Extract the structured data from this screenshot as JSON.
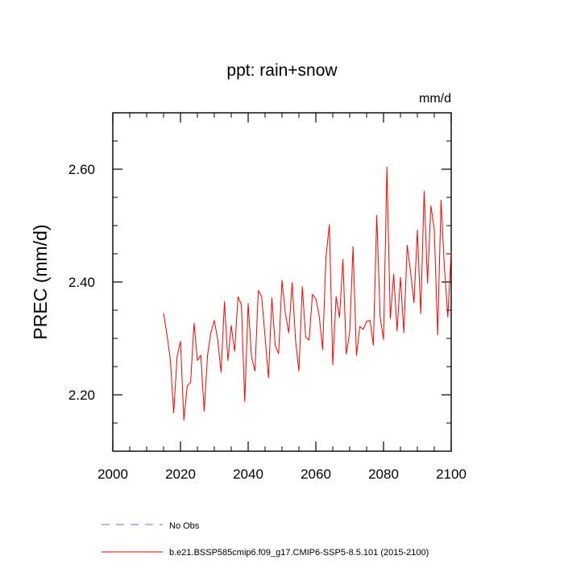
{
  "chart_data": {
    "type": "line",
    "title": "ppt: rain+snow",
    "units_label": "mm/d",
    "ylabel": "PREC  (mm/d)",
    "xlabel": "",
    "xlim": [
      2000,
      2100
    ],
    "ylim": [
      2.1,
      2.7
    ],
    "x_major_ticks": [
      2000,
      2020,
      2040,
      2060,
      2080,
      2100
    ],
    "x_tick_labels": [
      "2000",
      "2020",
      "2040",
      "2060",
      "2080",
      "2100"
    ],
    "x_minor_step": 5,
    "y_major_ticks": [
      2.2,
      2.4,
      2.6
    ],
    "y_tick_labels": [
      "2.20",
      "2.40",
      "2.60"
    ],
    "y_minor_step": 0.05,
    "series": [
      {
        "name": "b.e21.BSSP585cmip6.f09_g17.CMIP6-SSP5-8.5.101 (2015-2100)",
        "color": "#ff0000",
        "x": [
          2015,
          2016,
          2017,
          2018,
          2019,
          2020,
          2021,
          2022,
          2023,
          2024,
          2025,
          2026,
          2027,
          2028,
          2029,
          2030,
          2031,
          2032,
          2033,
          2034,
          2035,
          2036,
          2037,
          2038,
          2039,
          2040,
          2041,
          2042,
          2043,
          2044,
          2045,
          2046,
          2047,
          2048,
          2049,
          2050,
          2051,
          2052,
          2053,
          2054,
          2055,
          2056,
          2057,
          2058,
          2059,
          2060,
          2061,
          2062,
          2063,
          2064,
          2065,
          2066,
          2067,
          2068,
          2069,
          2070,
          2071,
          2072,
          2073,
          2074,
          2075,
          2076,
          2077,
          2078,
          2079,
          2080,
          2081,
          2082,
          2083,
          2084,
          2085,
          2086,
          2087,
          2088,
          2089,
          2090,
          2091,
          2092,
          2093,
          2094,
          2095,
          2096,
          2097,
          2098,
          2099,
          2100
        ],
        "values": [
          2.345,
          2.307,
          2.262,
          2.168,
          2.268,
          2.295,
          2.155,
          2.216,
          2.222,
          2.327,
          2.261,
          2.27,
          2.171,
          2.27,
          2.311,
          2.332,
          2.298,
          2.24,
          2.365,
          2.261,
          2.323,
          2.277,
          2.374,
          2.36,
          2.188,
          2.362,
          2.267,
          2.242,
          2.385,
          2.374,
          2.303,
          2.23,
          2.372,
          2.287,
          2.273,
          2.403,
          2.344,
          2.31,
          2.399,
          2.297,
          2.242,
          2.392,
          2.302,
          2.297,
          2.378,
          2.37,
          2.34,
          2.28,
          2.445,
          2.502,
          2.253,
          2.374,
          2.337,
          2.44,
          2.272,
          2.31,
          2.463,
          2.27,
          2.321,
          2.316,
          2.33,
          2.332,
          2.288,
          2.518,
          2.338,
          2.298,
          2.604,
          2.335,
          2.414,
          2.313,
          2.408,
          2.31,
          2.465,
          2.418,
          2.363,
          2.492,
          2.344,
          2.561,
          2.398,
          2.535,
          2.493,
          2.306,
          2.545,
          2.425,
          2.338,
          2.454
        ]
      },
      {
        "name": "No Obs",
        "color": "#6a6aff",
        "dashed": true,
        "x": [],
        "values": []
      }
    ],
    "legend_placement": "bottom"
  }
}
